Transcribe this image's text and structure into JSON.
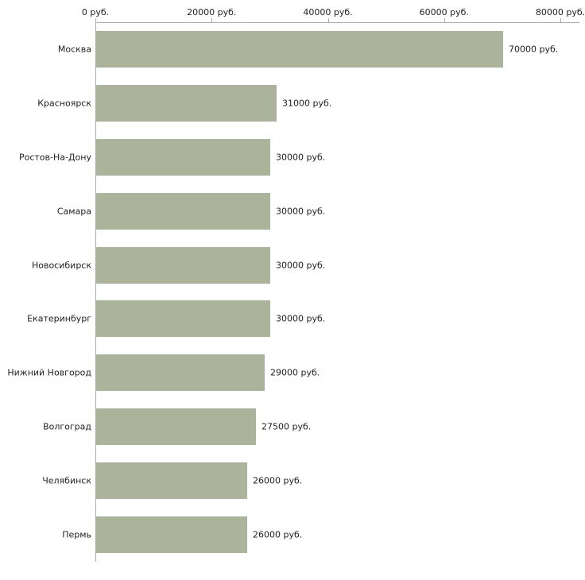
{
  "chart_data": {
    "type": "bar",
    "orientation": "horizontal",
    "title": "",
    "xlabel": "",
    "ylabel": "",
    "xlim": [
      0,
      80000
    ],
    "grid": false,
    "legend": false,
    "bar_color": "#abb49a",
    "axis_color": "#ababab",
    "text_color": "#222222",
    "categories": [
      "Москва",
      "Красноярск",
      "Ростов-На-Дону",
      "Самара",
      "Новосибирск",
      "Екатеринбург",
      "Нижний Новгород",
      "Волгоград",
      "Челябинск",
      "Пермь"
    ],
    "values": [
      70000,
      31000,
      30000,
      30000,
      30000,
      30000,
      29000,
      27500,
      26000,
      26000
    ],
    "value_labels": [
      "70000 руб.",
      "31000 руб.",
      "30000 руб.",
      "30000 руб.",
      "30000 руб.",
      "30000 руб.",
      "29000 руб.",
      "27500 руб.",
      "26000 руб.",
      "26000 руб."
    ],
    "x_ticks": [
      {
        "value": 0,
        "label": "0 руб."
      },
      {
        "value": 20000,
        "label": "20000 руб."
      },
      {
        "value": 40000,
        "label": "40000 руб."
      },
      {
        "value": 60000,
        "label": "60000 руб."
      },
      {
        "value": 80000,
        "label": "80000 руб."
      }
    ]
  }
}
